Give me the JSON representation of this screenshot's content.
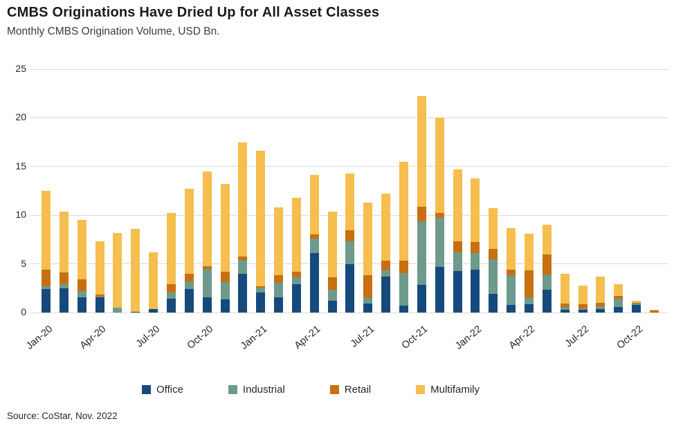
{
  "footer": {
    "source": "Source: CoStar, Nov. 2022"
  },
  "chart_data": {
    "type": "bar",
    "stacked": true,
    "title": "CMBS Originations Have Dried Up for All Asset Classes",
    "subtitle": "Monthly CMBS Origination Volume, USD Bn.",
    "xlabel": "",
    "ylabel": "",
    "ylim": [
      0,
      25
    ],
    "yticks": [
      0,
      5,
      10,
      15,
      20,
      25
    ],
    "grid": true,
    "gridline_color": "#d9d9d9",
    "legend_position": "bottom",
    "categories": [
      "Jan-20",
      "Feb-20",
      "Mar-20",
      "Apr-20",
      "May-20",
      "Jun-20",
      "Jul-20",
      "Aug-20",
      "Sep-20",
      "Oct-20",
      "Nov-20",
      "Dec-20",
      "Jan-21",
      "Feb-21",
      "Mar-21",
      "Apr-21",
      "May-21",
      "Jun-21",
      "Jul-21",
      "Aug-21",
      "Sep-21",
      "Oct-21",
      "Nov-21",
      "Dec-21",
      "Jan-22",
      "Feb-22",
      "Mar-22",
      "Apr-22",
      "May-22",
      "Jun-22",
      "Jul-22",
      "Aug-22",
      "Sep-22",
      "Oct-22",
      "Nov-22"
    ],
    "x_tick_labels": [
      "Jan-20",
      "Apr-20",
      "Jul-20",
      "Oct-20",
      "Jan-21",
      "Apr-21",
      "Jul-21",
      "Oct-21",
      "Jan-22",
      "Apr-22",
      "Jul-22",
      "Oct-22"
    ],
    "x_tick_every": 3,
    "series": [
      {
        "name": "Office",
        "color": "#164a7c",
        "values": [
          2.4,
          2.5,
          1.55,
          1.55,
          0.0,
          0.05,
          0.35,
          1.45,
          2.4,
          1.55,
          1.35,
          4.0,
          2.05,
          1.55,
          2.9,
          6.1,
          1.2,
          5.0,
          0.95,
          3.7,
          0.7,
          2.85,
          4.7,
          4.25,
          4.4,
          1.9,
          0.75,
          0.85,
          2.35,
          0.25,
          0.25,
          0.35,
          0.6,
          0.8,
          0.0
        ]
      },
      {
        "name": "Industrial",
        "color": "#6d9a8d",
        "values": [
          0.3,
          0.4,
          0.65,
          0.05,
          0.5,
          0.0,
          0.0,
          0.6,
          0.8,
          2.9,
          1.8,
          1.4,
          0.5,
          1.5,
          0.7,
          1.5,
          1.15,
          2.35,
          0.55,
          0.6,
          3.35,
          6.5,
          5.0,
          1.95,
          1.7,
          3.6,
          3.05,
          0.7,
          1.55,
          0.35,
          0.2,
          0.3,
          0.85,
          0.1,
          0.0
        ]
      },
      {
        "name": "Retail",
        "color": "#c76f11",
        "values": [
          1.7,
          1.2,
          1.2,
          0.25,
          0.0,
          0.0,
          0.0,
          0.85,
          0.8,
          0.3,
          1.05,
          0.35,
          0.15,
          0.8,
          0.6,
          0.4,
          1.3,
          1.1,
          2.3,
          1.05,
          1.3,
          1.55,
          0.55,
          1.15,
          1.15,
          1.05,
          0.6,
          2.75,
          2.05,
          0.3,
          0.4,
          0.35,
          0.25,
          0.1,
          0.2
        ]
      },
      {
        "name": "Multifamily",
        "color": "#f5be4e",
        "values": [
          8.1,
          6.3,
          6.1,
          5.45,
          7.7,
          8.55,
          5.85,
          7.3,
          8.7,
          9.75,
          9.0,
          11.75,
          13.9,
          6.95,
          7.6,
          6.1,
          6.75,
          5.85,
          7.5,
          6.85,
          10.15,
          11.3,
          9.75,
          7.35,
          6.55,
          4.15,
          4.3,
          3.8,
          3.05,
          3.1,
          1.9,
          2.7,
          1.2,
          0.2,
          0.1
        ]
      }
    ]
  }
}
